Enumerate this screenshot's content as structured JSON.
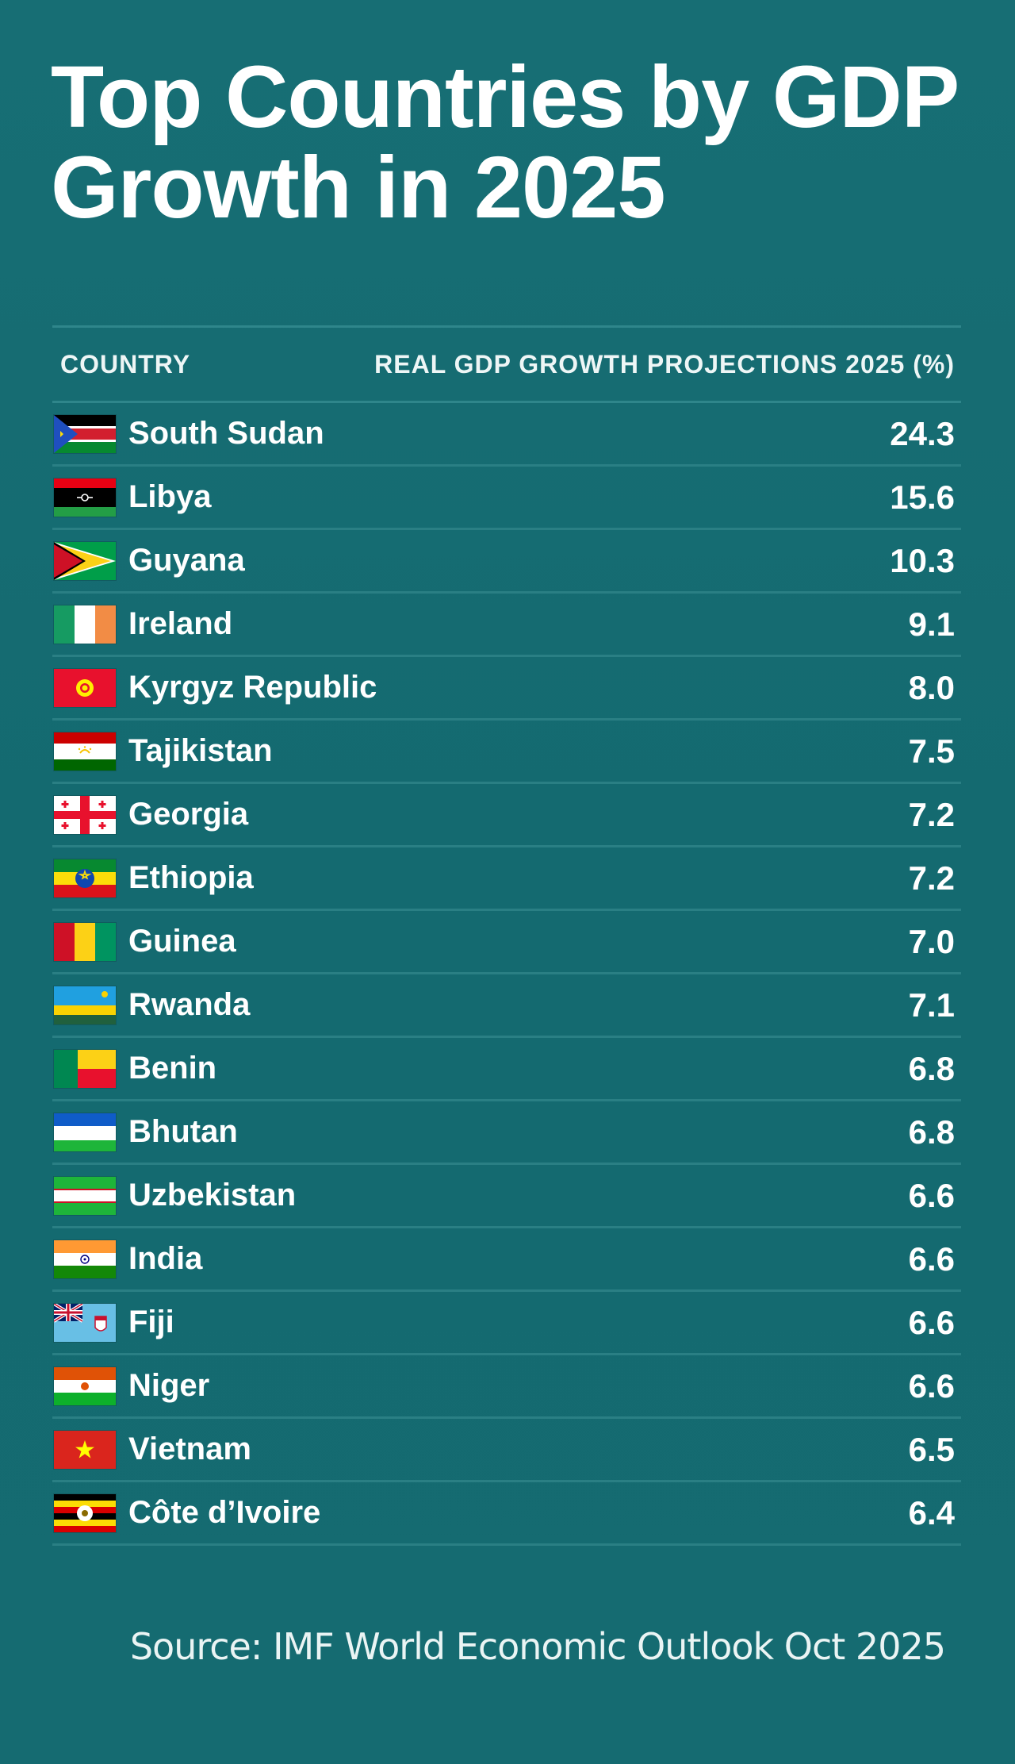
{
  "title": "Top Countries by GDP Growth in 2025",
  "source": "Source: IMF World Economic Outlook  Oct 2025",
  "colors": {
    "background": "#156a70",
    "row_divider": "#2a7f84",
    "text": "#ffffff"
  },
  "chart_data": {
    "type": "table",
    "title": "Top Countries by GDP Growth in 2025",
    "columns": [
      "COUNTRY",
      "REAL GDP GROWTH PROJECTIONS 2025 (%)"
    ],
    "rows": [
      {
        "country": "South Sudan",
        "value": "24.3",
        "flag": "south-sudan-flag"
      },
      {
        "country": "Libya",
        "value": "15.6",
        "flag": "libya-flag"
      },
      {
        "country": "Guyana",
        "value": "10.3",
        "flag": "guyana-flag"
      },
      {
        "country": "Ireland",
        "value": "9.1",
        "flag": "ireland-flag"
      },
      {
        "country": "Kyrgyz Republic",
        "value": "8.0",
        "flag": "kyrgyz-flag"
      },
      {
        "country": "Tajikistan",
        "value": "7.5",
        "flag": "tajikistan-flag"
      },
      {
        "country": "Georgia",
        "value": "7.2",
        "flag": "georgia-flag"
      },
      {
        "country": "Ethiopia",
        "value": "7.2",
        "flag": "ethiopia-flag"
      },
      {
        "country": "Guinea",
        "value": "7.0",
        "flag": "guinea-flag"
      },
      {
        "country": "Rwanda",
        "value": "7.1",
        "flag": "rwanda-flag"
      },
      {
        "country": "Benin",
        "value": "6.8",
        "flag": "benin-flag"
      },
      {
        "country": "Bhutan",
        "value": "6.8",
        "flag": "bhutan-flag"
      },
      {
        "country": "Uzbekistan",
        "value": "6.6",
        "flag": "uzbekistan-flag"
      },
      {
        "country": "India",
        "value": "6.6",
        "flag": "india-flag"
      },
      {
        "country": "Fiji",
        "value": "6.6",
        "flag": "fiji-flag"
      },
      {
        "country": "Niger",
        "value": "6.6",
        "flag": "niger-flag"
      },
      {
        "country": "Vietnam",
        "value": "6.5",
        "flag": "vietnam-flag"
      },
      {
        "country": "Côte d’Ivoire",
        "value": "6.4",
        "flag": "cote-divoire-flag"
      }
    ]
  }
}
